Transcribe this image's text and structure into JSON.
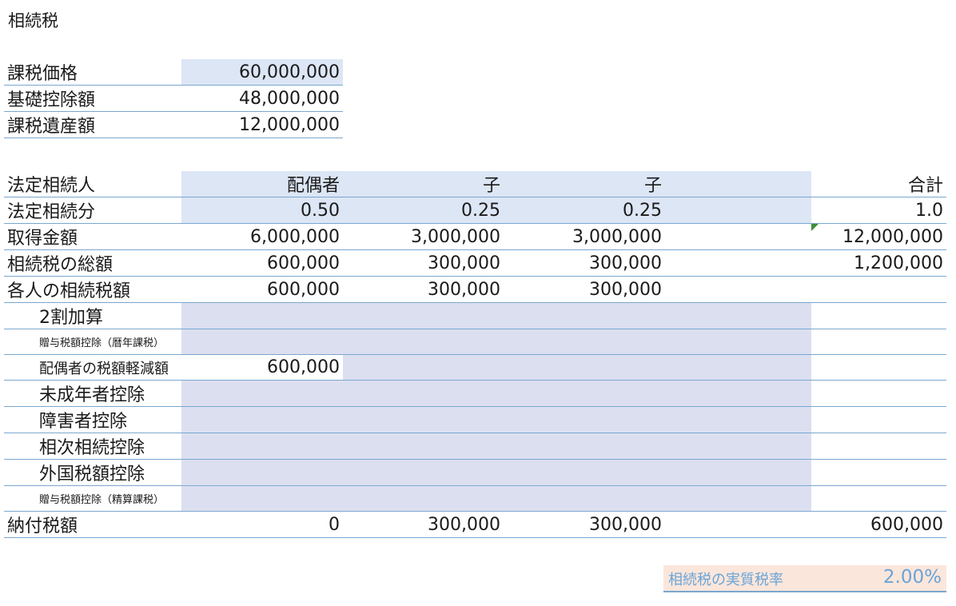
{
  "title": "相続税",
  "summary": {
    "rows": [
      {
        "label": "課税価格",
        "value": "60,000,000"
      },
      {
        "label": "基礎控除額",
        "value": "48,000,000"
      },
      {
        "label": "課税遺産額",
        "value": "12,000,000"
      }
    ]
  },
  "heirs": {
    "header": {
      "label": "法定相続人",
      "cols": [
        "配偶者",
        "子",
        "子",
        "",
        "合計"
      ]
    },
    "rows": [
      {
        "label": "法定相続分",
        "cols": [
          "0.50",
          "0.25",
          "0.25",
          "",
          "1.0"
        ]
      },
      {
        "label": "取得金額",
        "cols": [
          "6,000,000",
          "3,000,000",
          "3,000,000",
          "",
          "12,000,000"
        ]
      },
      {
        "label": "相続税の総額",
        "cols": [
          "600,000",
          "300,000",
          "300,000",
          "",
          "1,200,000"
        ]
      },
      {
        "label": "各人の相続税額",
        "cols": [
          "600,000",
          "300,000",
          "300,000",
          "",
          ""
        ]
      }
    ],
    "adjustments": [
      {
        "label": "2割加算",
        "cols": [
          "",
          "",
          "",
          "",
          ""
        ]
      },
      {
        "label": "贈与税額控除（暦年課税）",
        "cols": [
          "",
          "",
          "",
          "",
          ""
        ]
      },
      {
        "label": "配偶者の税額軽減額",
        "cols": [
          "600,000",
          "",
          "",
          "",
          ""
        ]
      },
      {
        "label": "未成年者控除",
        "cols": [
          "",
          "",
          "",
          "",
          ""
        ]
      },
      {
        "label": "障害者控除",
        "cols": [
          "",
          "",
          "",
          "",
          ""
        ]
      },
      {
        "label": "相次相続控除",
        "cols": [
          "",
          "",
          "",
          "",
          ""
        ]
      },
      {
        "label": "外国税額控除",
        "cols": [
          "",
          "",
          "",
          "",
          ""
        ]
      },
      {
        "label": "贈与税額控除（精算課税）",
        "cols": [
          "",
          "",
          "",
          "",
          ""
        ]
      }
    ],
    "total": {
      "label": "納付税額",
      "cols": [
        "0",
        "300,000",
        "300,000",
        "",
        "600,000"
      ]
    }
  },
  "effective_rate": {
    "label": "相続税の実質税率",
    "value": "2.00%"
  }
}
